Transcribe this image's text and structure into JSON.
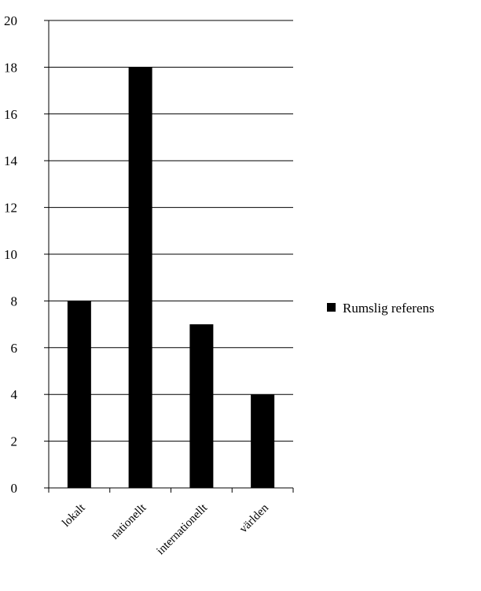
{
  "chart_data": {
    "type": "bar",
    "categories": [
      "lokalt",
      "nationellt",
      "internationellt",
      "världen"
    ],
    "series": [
      {
        "name": "Rumslig referens",
        "values": [
          8,
          18,
          7,
          4
        ],
        "color": "#000000"
      }
    ],
    "ylim": [
      0,
      20
    ],
    "yticks": [
      0,
      2,
      4,
      6,
      8,
      10,
      12,
      14,
      16,
      18,
      20
    ],
    "grid": true,
    "legend_position": "right"
  }
}
